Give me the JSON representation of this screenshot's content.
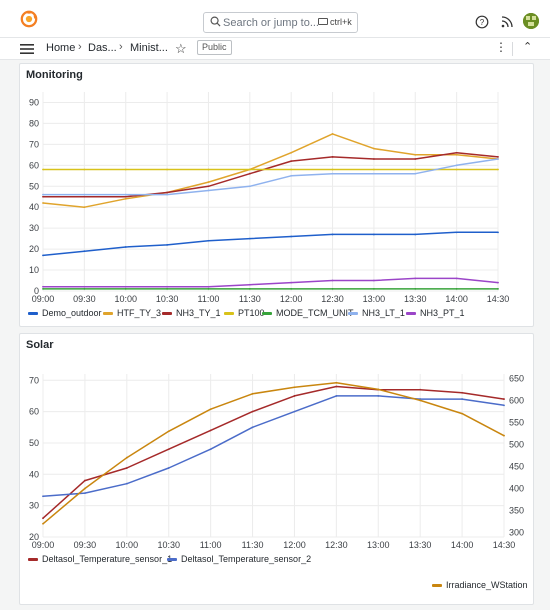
{
  "search": {
    "placeholder": "Search or jump to...",
    "shortcut": "ctrl+k"
  },
  "breadcrumb": {
    "home": "Home",
    "item2": "Das...",
    "item3": "Minist..."
  },
  "badge": "Public",
  "colors": {
    "accent_orange": "#f47f22",
    "demo_outdoor": "#1f5fcb",
    "htf_ty_3": "#e0a42c",
    "nh3_ty_1": "#a52a2a",
    "pt100": "#d8c21a",
    "mode_tcm_unit": "#37a33a",
    "nh3_lt_1": "#8fb2ee",
    "nh3_pt_1": "#9b45c8"
  },
  "panels": [
    {
      "title": "Monitoring"
    },
    {
      "title": "Solar"
    }
  ],
  "chart_data": [
    {
      "type": "line",
      "title": "Monitoring",
      "x": [
        "09:00",
        "09:30",
        "10:00",
        "10:30",
        "11:00",
        "11:30",
        "12:00",
        "12:30",
        "13:00",
        "13:30",
        "14:00",
        "14:30"
      ],
      "ylim": [
        0,
        95
      ],
      "yticks": [
        0,
        10,
        20,
        30,
        40,
        50,
        60,
        70,
        80,
        90
      ],
      "legend": "bottom",
      "grid": true,
      "series": [
        {
          "name": "Demo_outdoor",
          "color": "#1f5fcb",
          "values": [
            17,
            19,
            21,
            22,
            24,
            25,
            26,
            27,
            27,
            27,
            28,
            28
          ]
        },
        {
          "name": "HTF_TY_3",
          "color": "#e0a42c",
          "values": [
            42,
            40,
            44,
            47,
            52,
            58,
            66,
            75,
            68,
            65,
            65,
            63
          ]
        },
        {
          "name": "NH3_TY_1",
          "color": "#a52a2a",
          "values": [
            45,
            45,
            45,
            47,
            50,
            56,
            62,
            64,
            63,
            63,
            66,
            64
          ]
        },
        {
          "name": "PT100",
          "color": "#d8c21a",
          "values": [
            58,
            58,
            58,
            58,
            58,
            58,
            58,
            58,
            58,
            58,
            58,
            58
          ]
        },
        {
          "name": "MODE_TCM_UNIT",
          "color": "#37a33a",
          "values": [
            1,
            1,
            1,
            1,
            1,
            1,
            1,
            1,
            1,
            1,
            1,
            1
          ]
        },
        {
          "name": "NH3_LT_1",
          "color": "#8fb2ee",
          "values": [
            46,
            46,
            46,
            46,
            48,
            50,
            55,
            56,
            56,
            56,
            60,
            63
          ]
        },
        {
          "name": "NH3_PT_1",
          "color": "#9b45c8",
          "values": [
            2,
            2,
            2,
            2,
            2,
            3,
            4,
            5,
            5,
            6,
            6,
            4
          ]
        }
      ]
    },
    {
      "type": "line",
      "title": "Solar",
      "x": [
        "09:00",
        "09:30",
        "10:00",
        "10:30",
        "11:00",
        "11:30",
        "12:00",
        "12:30",
        "13:00",
        "13:30",
        "14:00",
        "14:30"
      ],
      "ylim": [
        20,
        72
      ],
      "yticks": [
        20,
        30,
        40,
        50,
        60,
        70
      ],
      "y2lim": [
        290,
        660
      ],
      "y2ticks": [
        300,
        350,
        400,
        450,
        500,
        550,
        600,
        650
      ],
      "legend": "bottom",
      "grid": true,
      "series": [
        {
          "name": "Deltasol_Temperature_sensor_1",
          "color": "#a52a2a",
          "axis": "left",
          "values": [
            26,
            38,
            42,
            48,
            54,
            60,
            65,
            68,
            67,
            67,
            66,
            64
          ]
        },
        {
          "name": "Deltasol_Temperature_sensor_2",
          "color": "#4b6cc9",
          "axis": "left",
          "values": [
            33,
            34,
            37,
            42,
            48,
            55,
            60,
            65,
            65,
            64,
            64,
            62
          ]
        },
        {
          "name": "Irradiance_WStation",
          "color": "#c9860f",
          "axis": "right",
          "values": [
            320,
            400,
            470,
            530,
            580,
            615,
            630,
            640,
            625,
            600,
            570,
            520
          ]
        }
      ]
    }
  ]
}
